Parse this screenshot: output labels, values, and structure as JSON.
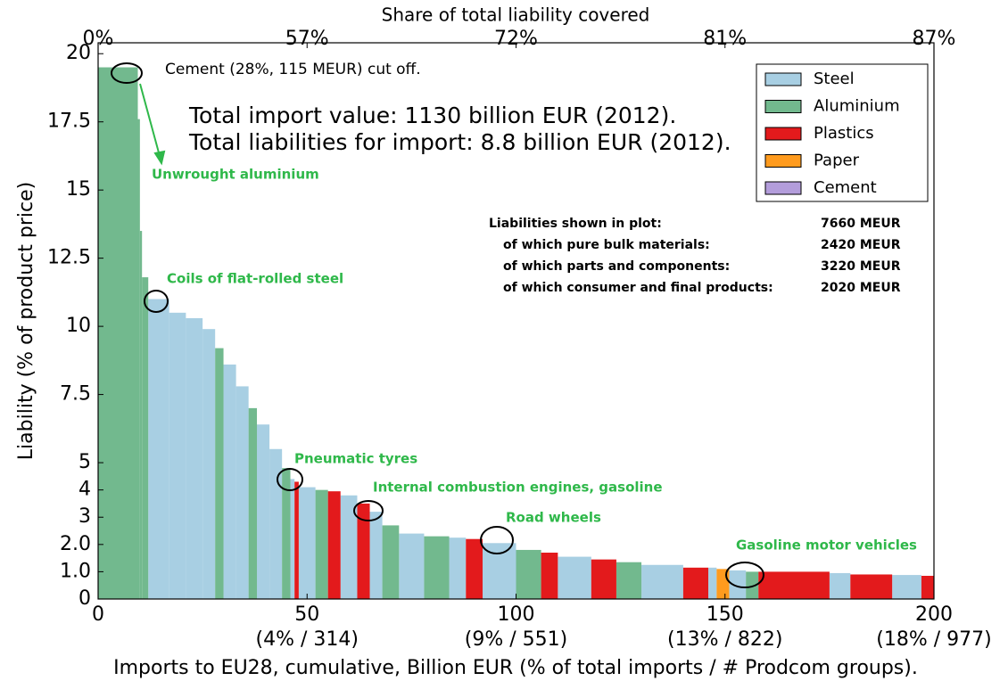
{
  "chart_data": {
    "type": "step-bar",
    "ylabel": "Liability (% of product price)",
    "xlabel": "Imports to EU28, cumulative, Billion EUR (% of total imports / # Prodcom groups).",
    "top_xlabel": "Share of total liability covered",
    "xlim": [
      0,
      200
    ],
    "ylim": [
      0,
      20.4
    ],
    "xticks": [
      0,
      50,
      100,
      150,
      200
    ],
    "xtick_sublabels": [
      null,
      "(4% / 314)",
      "(9% / 551)",
      "(13% / 822)",
      "(18% / 977)"
    ],
    "top_xticks": [
      {
        "value": 0,
        "label": "0%"
      },
      {
        "value": 50,
        "label": "57%"
      },
      {
        "value": 100,
        "label": "72%"
      },
      {
        "value": 150,
        "label": "81%"
      },
      {
        "value": 200,
        "label": "87%"
      }
    ],
    "yticks": [
      0,
      {
        "value": 1,
        "label": "1.0"
      },
      {
        "value": 2,
        "label": "2.0"
      },
      3,
      4,
      5,
      7.5,
      10,
      12.5,
      15,
      17.5,
      20
    ],
    "legend": "upper right",
    "series": [
      {
        "name": "Steel",
        "color": "#a8cfe3",
        "x0": [
          12,
          17,
          21,
          25,
          30,
          33,
          38,
          41,
          46,
          48,
          58,
          65,
          72,
          84,
          92,
          110,
          130,
          146,
          151,
          175,
          190
        ],
        "x1": [
          17,
          21,
          25,
          28,
          33,
          36,
          41,
          44,
          47,
          52,
          62,
          68,
          78,
          88,
          100,
          118,
          140,
          148,
          155,
          180,
          197
        ],
        "values": [
          11.0,
          10.5,
          10.3,
          9.9,
          8.6,
          7.8,
          6.4,
          5.5,
          4.4,
          4.1,
          3.8,
          3.2,
          2.4,
          2.25,
          2.05,
          1.55,
          1.25,
          1.15,
          1.05,
          0.95,
          0.88
        ]
      },
      {
        "name": "Aluminium",
        "color": "#72b98e",
        "x0": [
          0,
          9.5,
          10,
          10.5,
          28,
          36,
          44,
          52,
          68,
          78,
          100,
          124,
          155
        ],
        "x1": [
          9.5,
          10,
          10.5,
          12,
          30,
          38,
          46,
          55,
          72,
          84,
          106,
          130,
          158
        ],
        "values": [
          19.5,
          17.6,
          13.5,
          11.8,
          9.2,
          7.0,
          4.8,
          4.0,
          2.7,
          2.3,
          1.8,
          1.35,
          1.0
        ]
      },
      {
        "name": "Plastics",
        "color": "#e31a1c",
        "x0": [
          47,
          55,
          62,
          88,
          106,
          118,
          140,
          158,
          180,
          197
        ],
        "x1": [
          48,
          58,
          65,
          92,
          110,
          124,
          146,
          175,
          190,
          200
        ],
        "values": [
          4.3,
          3.95,
          3.5,
          2.2,
          1.7,
          1.45,
          1.15,
          1.0,
          0.9,
          0.85
        ]
      },
      {
        "name": "Paper",
        "color": "#ff9b1e",
        "x0": [
          148
        ],
        "x1": [
          151
        ],
        "values": [
          1.1
        ]
      },
      {
        "name": "Cement",
        "color": "#b39ddb",
        "x0": [],
        "x1": [],
        "values": []
      }
    ],
    "annotations": {
      "cement": "Cement (28%, 115 MEUR) cut off.",
      "total_import": "Total import value: 1130 billion EUR (2012).",
      "total_liabilities": "Total liabilities for import: 8.8 billion EUR (2012).",
      "products": [
        "Unwrought aluminium",
        "Coils of flat-rolled steel",
        "Pneumatic tyres",
        "Internal combustion engines, gasoline",
        "Road wheels",
        "Gasoline motor vehicles"
      ]
    },
    "summary": [
      {
        "label": "Liabilities shown in plot:",
        "value": "7660 MEUR"
      },
      {
        "label": "of which pure bulk materials:",
        "value": "2420 MEUR"
      },
      {
        "label": "of which parts and components:",
        "value": "3220 MEUR"
      },
      {
        "label": "of which consumer and final products:",
        "value": "2020 MEUR"
      }
    ]
  }
}
